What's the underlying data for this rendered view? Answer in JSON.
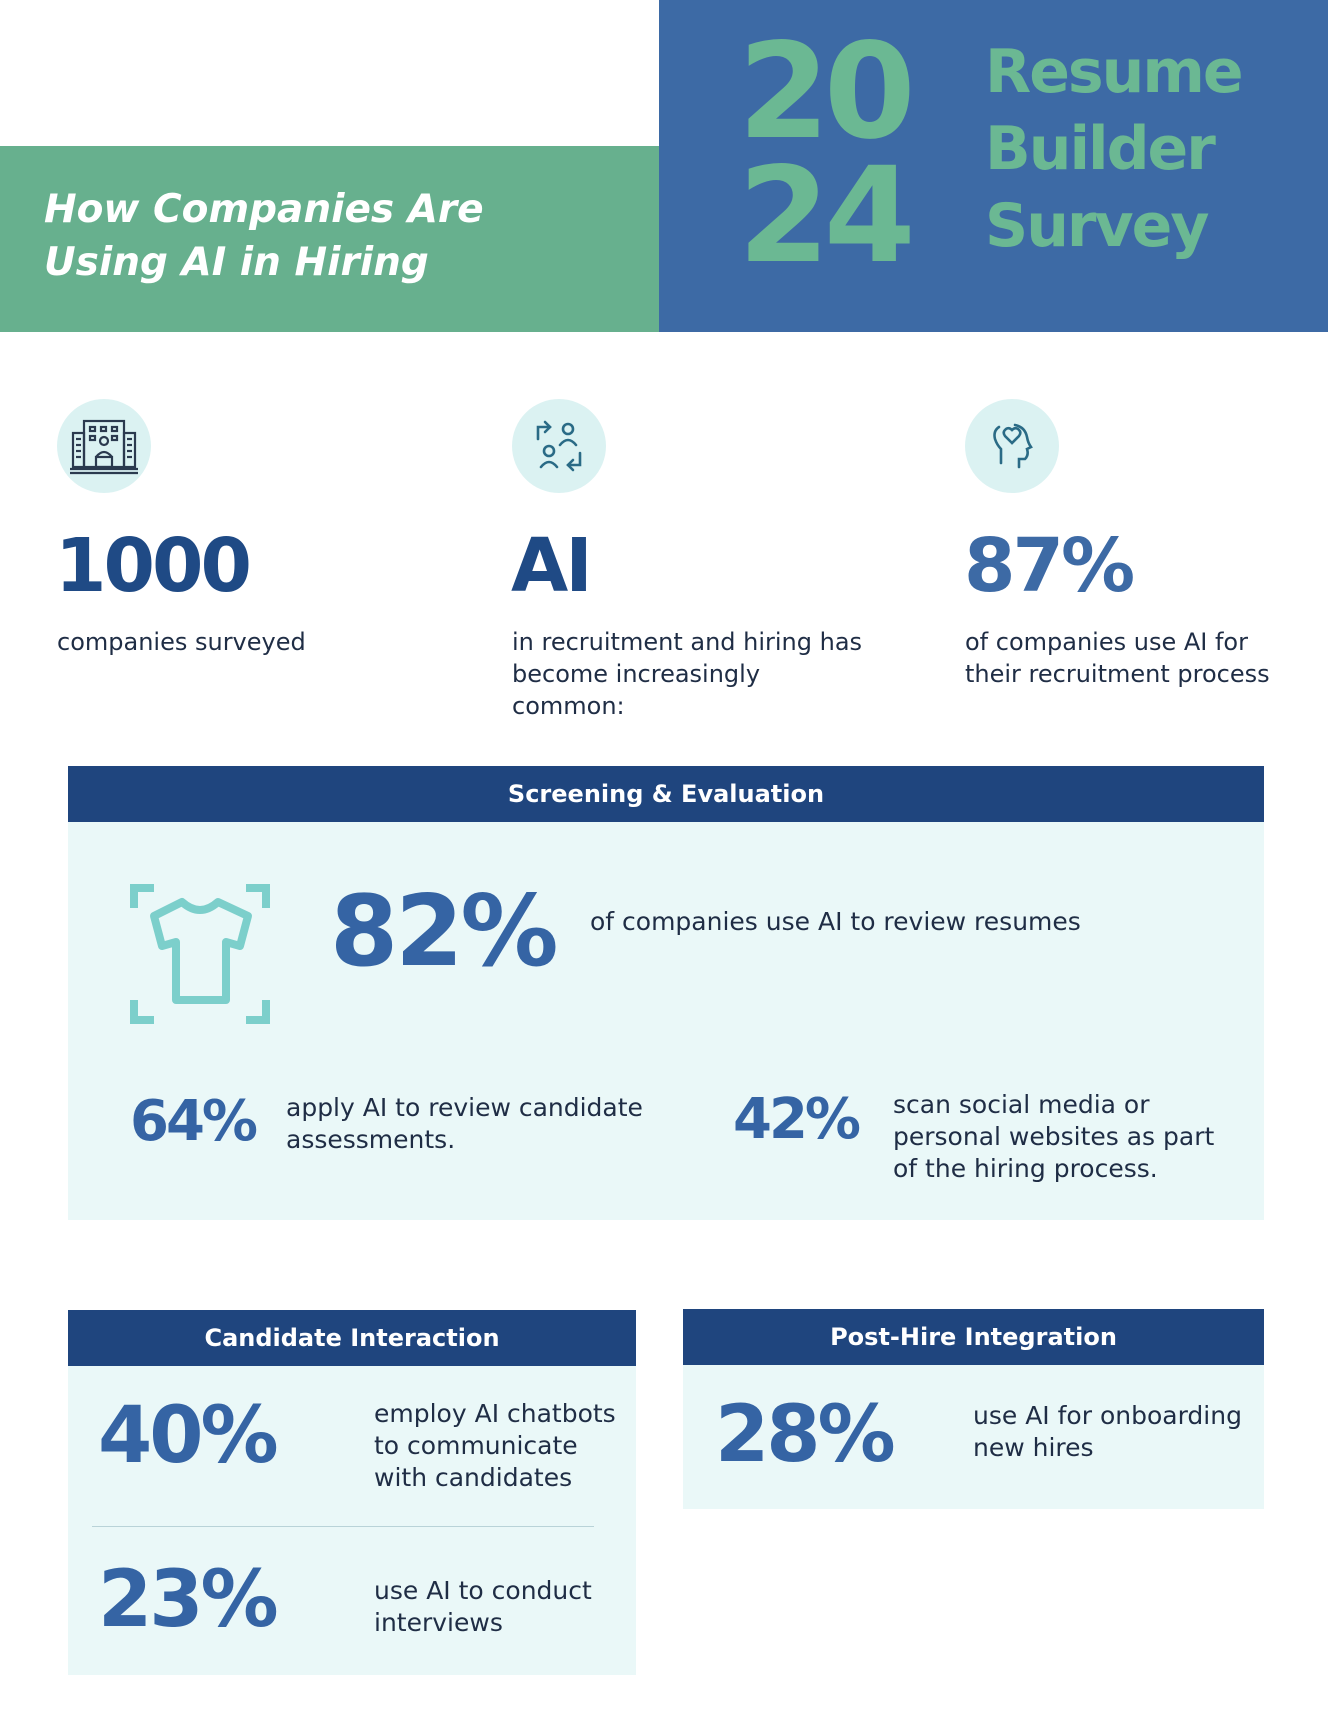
{
  "header": {
    "subtitle_line1": "How Companies Are",
    "subtitle_line2": "Using AI in Hiring",
    "year_top": "20",
    "year_bottom": "24",
    "title_line1": "Resume",
    "title_line2": "Builder",
    "title_line3": "Survey"
  },
  "stats": [
    {
      "icon": "office-building-icon",
      "value": "1000",
      "text": "companies surveyed"
    },
    {
      "icon": "recruitment-cycle-icon",
      "value": "AI",
      "text": "in recruitment and hiring has become increasingly common:"
    },
    {
      "icon": "head-heart-icon",
      "value": "87%",
      "text": "of companies use AI for their recruitment process"
    }
  ],
  "screening": {
    "heading": "Screening & Evaluation",
    "icon": "shirt-scan-icon",
    "main_value": "82%",
    "main_text": "of companies use AI to review resumes",
    "left_value": "64%",
    "left_text": "apply AI to review candidate assessments.",
    "right_value": "42%",
    "right_text": "scan social media or personal websites as part of the hiring process."
  },
  "candidate": {
    "heading": "Candidate Interaction",
    "items": [
      {
        "value": "40%",
        "text": "employ AI chatbots to communicate with candidates"
      },
      {
        "value": "23%",
        "text": "use AI to conduct interviews"
      }
    ]
  },
  "posthire": {
    "heading": "Post-Hire Integration",
    "value": "28%",
    "text": "use AI for onboarding new hires"
  },
  "colors": {
    "green": "#67b08e",
    "blue": "#3d6aa5",
    "navy": "#1f457e",
    "light_panel": "#eaf8f8"
  }
}
